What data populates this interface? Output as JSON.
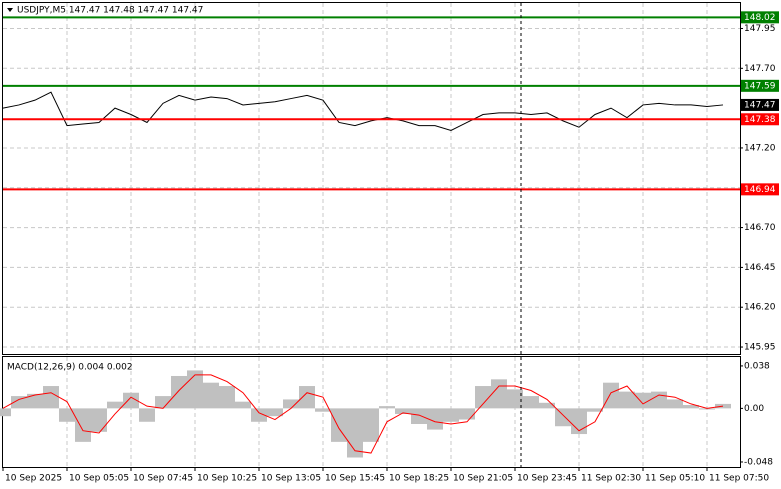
{
  "chart_data": [
    {
      "type": "line",
      "title": "USDJPY,M5  147.47 147.48 147.47 147.47",
      "color": "#000000",
      "values": [
        147.45,
        147.47,
        147.5,
        147.55,
        147.34,
        147.35,
        147.36,
        147.45,
        147.41,
        147.36,
        147.48,
        147.53,
        147.5,
        147.52,
        147.51,
        147.47,
        147.48,
        147.49,
        147.51,
        147.53,
        147.5,
        147.36,
        147.34,
        147.37,
        147.39,
        147.37,
        147.34,
        147.34,
        147.31,
        147.36,
        147.41,
        147.42,
        147.42,
        147.41,
        147.42,
        147.37,
        147.33,
        147.41,
        147.45,
        147.39,
        147.47,
        147.48,
        147.47,
        147.47,
        147.46,
        147.47
      ],
      "ylim": [
        145.9,
        148.11
      ],
      "yticks": [
        147.95,
        {
          "value": 147.7,
          "label": "147.70"
        },
        {
          "value": 147.2,
          "label": "147.20"
        },
        146.95,
        {
          "value": 146.7,
          "label": "146.70"
        },
        146.45,
        {
          "value": 146.2,
          "label": "146.20"
        },
        145.95
      ],
      "grid": true,
      "levels": [
        {
          "value": 148.02,
          "color": "#008000"
        },
        {
          "value": 147.59,
          "color": "#008000"
        },
        {
          "value": 147.38,
          "color": "#ff0000"
        },
        {
          "value": 146.94,
          "color": "#ff0000"
        }
      ],
      "last_price": 147.47
    },
    {
      "type": "macd",
      "title": "MACD(12,26,9) 0.004 0.002",
      "categories": [
        "10 Sep 2025",
        null,
        null,
        null,
        "10 Sep 05:05",
        null,
        null,
        null,
        "10 Sep 07:45",
        null,
        null,
        null,
        "10 Sep 10:25",
        null,
        null,
        null,
        "10 Sep 13:05",
        null,
        null,
        null,
        "10 Sep 15:45",
        null,
        null,
        null,
        "10 Sep 18:25",
        null,
        null,
        null,
        "10 Sep 21:05",
        null,
        null,
        null,
        "10 Sep 23:45",
        null,
        null,
        null,
        "11 Sep 02:30",
        null,
        null,
        null,
        "11 Sep 05:10",
        null,
        null,
        null,
        "11 Sep 07:50",
        null
      ],
      "histogram": {
        "color": "#c0c0c0",
        "values": [
          -0.007,
          0.011,
          0.013,
          0.02,
          -0.012,
          -0.03,
          -0.021,
          0.006,
          0.014,
          -0.012,
          0.011,
          0.029,
          0.034,
          0.023,
          0.02,
          0.006,
          -0.012,
          -0.007,
          0.008,
          0.02,
          -0.003,
          -0.03,
          -0.044,
          -0.03,
          0.002,
          -0.005,
          -0.014,
          -0.019,
          -0.012,
          -0.01,
          0.02,
          0.026,
          0.017,
          0.011,
          0.005,
          -0.016,
          -0.023,
          -0.003,
          0.023,
          0.015,
          0.014,
          0.015,
          0.008,
          0.003,
          -0.001,
          0.004
        ]
      },
      "signal": {
        "color": "#ff0000",
        "values": [
          0.0,
          0.008,
          0.012,
          0.014,
          0.006,
          -0.02,
          -0.022,
          -0.005,
          0.01,
          0.002,
          0.0,
          0.016,
          0.03,
          0.03,
          0.024,
          0.014,
          -0.004,
          -0.01,
          0.0,
          0.014,
          0.01,
          -0.018,
          -0.038,
          -0.04,
          -0.012,
          -0.004,
          -0.006,
          -0.012,
          -0.014,
          -0.012,
          0.004,
          0.02,
          0.02,
          0.016,
          0.008,
          -0.006,
          -0.02,
          -0.012,
          0.014,
          0.02,
          0.004,
          0.012,
          0.01,
          0.004,
          0.0,
          0.002
        ]
      },
      "ylim": [
        -0.0525,
        0.046
      ],
      "yticks": [
        0.038,
        {
          "value": 0,
          "label": "0.00"
        },
        -0.048
      ]
    }
  ]
}
